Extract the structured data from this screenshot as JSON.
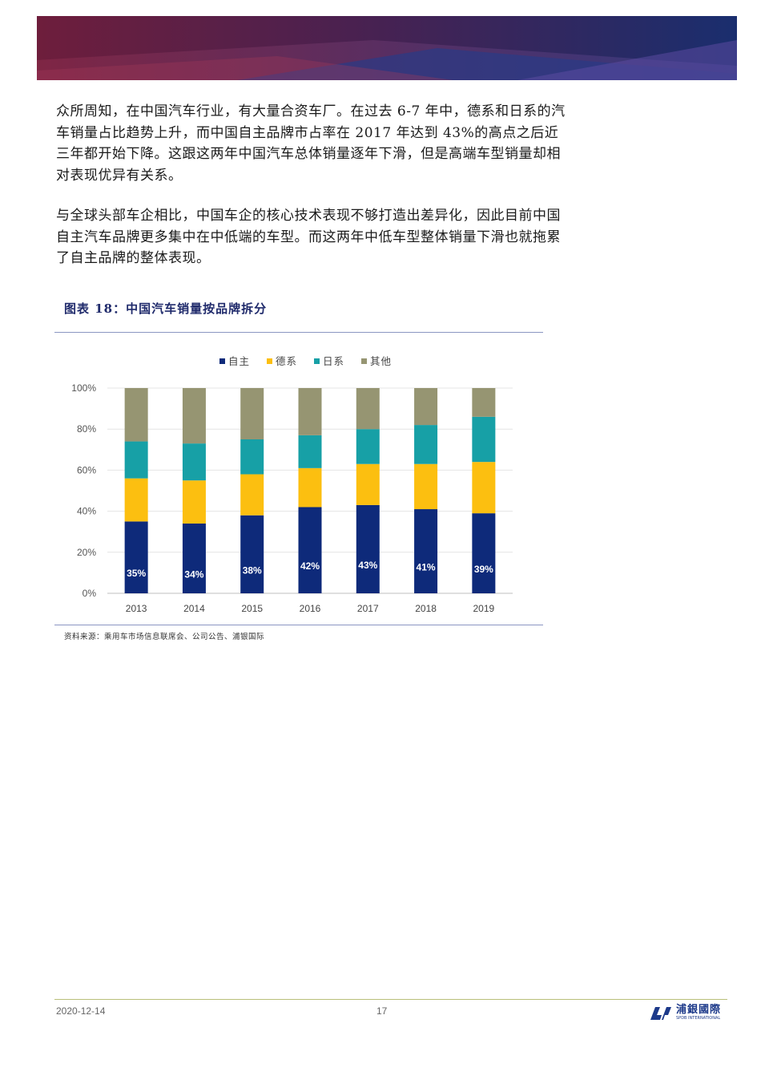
{
  "paragraphs": [
    "众所周知，在中国汽车行业，有大量合资车厂。在过去 6-7 年中，德系和日系的汽车销量占比趋势上升，而中国自主品牌市占率在 2017 年达到 43%的高点之后近三年都开始下降。这跟这两年中国汽车总体销量逐年下滑，但是高端车型销量却相对表现优异有关系。",
    "与全球头部车企相比，中国车企的核心技术表现不够打造出差异化，因此目前中国自主汽车品牌更多集中在中低端的车型。而这两年中低车型整体销量下滑也就拖累了自主品牌的整体表现。"
  ],
  "figure": {
    "title": "图表 18：中国汽车销量按品牌拆分",
    "source": "资料来源：乘用车市场信息联席会、公司公告、浦银国际"
  },
  "chart_data": {
    "type": "bar",
    "stacked": true,
    "categories": [
      "2013",
      "2014",
      "2015",
      "2016",
      "2017",
      "2018",
      "2019"
    ],
    "series": [
      {
        "name": "自主",
        "color": "#0e2a7a",
        "values": [
          35,
          34,
          38,
          42,
          43,
          41,
          39
        ],
        "labels": [
          "35%",
          "34%",
          "38%",
          "42%",
          "43%",
          "41%",
          "39%"
        ]
      },
      {
        "name": "德系",
        "color": "#fcbf10",
        "values": [
          21,
          21,
          20,
          19,
          20,
          22,
          25
        ]
      },
      {
        "name": "日系",
        "color": "#17a0a6",
        "values": [
          18,
          18,
          17,
          16,
          17,
          19,
          22
        ]
      },
      {
        "name": "其他",
        "color": "#969572",
        "values": [
          26,
          27,
          25,
          23,
          20,
          18,
          14
        ]
      }
    ],
    "yticks": [
      "0%",
      "20%",
      "40%",
      "60%",
      "80%",
      "100%"
    ],
    "ylim": [
      0,
      100
    ],
    "legend_position": "top"
  },
  "footer": {
    "date": "2020-12-14",
    "page": "17",
    "logo_cn": "浦銀國際",
    "logo_en": "SPDB INTERNATIONAL"
  },
  "colors": {
    "banner_left": "#6b1f3a",
    "banner_right": "#1c2f6e",
    "title_blue": "#1f2a6b"
  }
}
